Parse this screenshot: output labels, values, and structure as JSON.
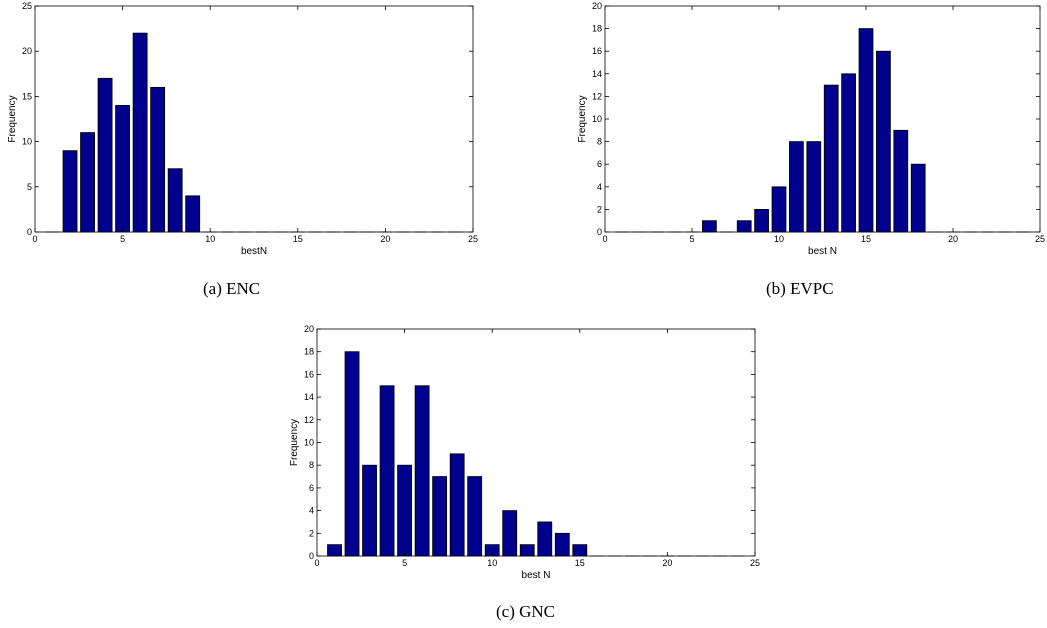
{
  "chart_data": [
    {
      "type": "bar",
      "caption": "(a) ENC",
      "xlabel": "bestN",
      "ylabel": "Frequency",
      "xlim": [
        0,
        25
      ],
      "ylim": [
        0,
        25
      ],
      "xticks": [
        0,
        5,
        10,
        15,
        20,
        25
      ],
      "yticks": [
        0,
        5,
        10,
        15,
        20,
        25
      ],
      "x": [
        1,
        2,
        3,
        4,
        5,
        6,
        7,
        8,
        9,
        10,
        11,
        12,
        13,
        14,
        15,
        16,
        17,
        18,
        19,
        20,
        21,
        22,
        23,
        24
      ],
      "values": [
        0,
        9,
        11,
        17,
        14,
        22,
        16,
        7,
        4,
        0,
        0,
        0,
        0,
        0,
        0,
        0,
        0,
        0,
        0,
        0,
        0,
        0,
        0,
        0
      ],
      "bar_color": "#00008f",
      "grid": false
    },
    {
      "type": "bar",
      "caption": "(b) EVPC",
      "xlabel": "best N",
      "ylabel": "Frequency",
      "xlim": [
        0,
        25
      ],
      "ylim": [
        0,
        20
      ],
      "xticks": [
        0,
        5,
        10,
        15,
        20,
        25
      ],
      "yticks": [
        0,
        2,
        4,
        6,
        8,
        10,
        12,
        14,
        16,
        18,
        20
      ],
      "x": [
        1,
        2,
        3,
        4,
        5,
        6,
        7,
        8,
        9,
        10,
        11,
        12,
        13,
        14,
        15,
        16,
        17,
        18,
        19,
        20,
        21,
        22,
        23,
        24
      ],
      "values": [
        0,
        0,
        0,
        0,
        0,
        1,
        0,
        1,
        2,
        4,
        8,
        8,
        13,
        14,
        18,
        16,
        9,
        6,
        0,
        0,
        0,
        0,
        0,
        0
      ],
      "bar_color": "#00008f",
      "grid": false
    },
    {
      "type": "bar",
      "caption": "(c) GNC",
      "xlabel": "best N",
      "ylabel": "Frequency",
      "xlim": [
        0,
        25
      ],
      "ylim": [
        0,
        20
      ],
      "xticks": [
        0,
        5,
        10,
        15,
        20,
        25
      ],
      "yticks": [
        0,
        2,
        4,
        6,
        8,
        10,
        12,
        14,
        16,
        18,
        20
      ],
      "x": [
        1,
        2,
        3,
        4,
        5,
        6,
        7,
        8,
        9,
        10,
        11,
        12,
        13,
        14,
        15,
        16,
        17,
        18,
        19,
        20,
        21,
        22,
        23,
        24
      ],
      "values": [
        1,
        18,
        8,
        15,
        8,
        15,
        7,
        9,
        7,
        1,
        4,
        1,
        3,
        2,
        1,
        0,
        0,
        0,
        0,
        0,
        0,
        0,
        0,
        0
      ],
      "bar_color": "#00008f",
      "grid": false
    }
  ]
}
